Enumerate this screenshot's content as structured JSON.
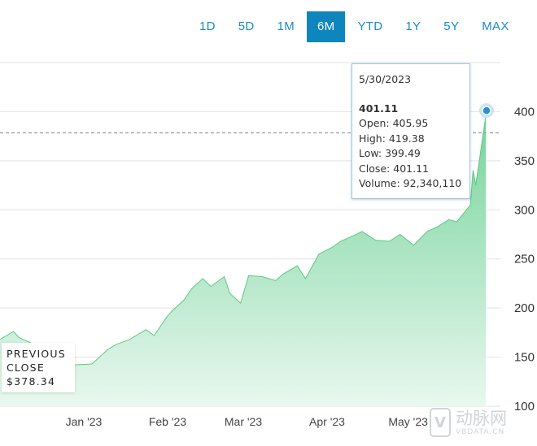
{
  "ranges": {
    "items": [
      "1D",
      "5D",
      "1M",
      "6M",
      "YTD",
      "1Y",
      "5Y",
      "MAX"
    ],
    "active": "6M"
  },
  "colors": {
    "accent": "#0e86bd",
    "area_top": "#74d39a",
    "area_bottom": "#e9f8ef",
    "gridline": "#e2e2e2"
  },
  "tooltip": {
    "date": "5/30/2023",
    "price": "401.11",
    "open": "Open: 405.95",
    "high": "High: 419.38",
    "low": "Low: 399.49",
    "close": "Close: 401.11",
    "volume": "Volume: 92,340,110"
  },
  "previous_close": {
    "label_line1": "PREVIOUS",
    "label_line2": "CLOSE",
    "value": "$378.34"
  },
  "watermark": {
    "logo_letter": "V",
    "text": "动脉网",
    "url": "VBDATA.CN"
  },
  "chart_data": {
    "type": "area",
    "x_tick_labels": [
      "Jan '23",
      "Feb '23",
      "Mar '23",
      "Apr '23",
      "May '23"
    ],
    "y_ticks": [
      100,
      150,
      200,
      250,
      300,
      350,
      400
    ],
    "ylim": [
      100,
      450
    ],
    "previous_close": 378.34,
    "grid": true,
    "series": [
      {
        "x": [
          "2022-12-01",
          "2022-12-06",
          "2022-12-08",
          "2022-12-12",
          "2022-12-16",
          "2022-12-22",
          "2022-12-28",
          "2023-01-04",
          "2023-01-10",
          "2023-01-13",
          "2023-01-18",
          "2023-01-24",
          "2023-01-27",
          "2023-02-01",
          "2023-02-03",
          "2023-02-07",
          "2023-02-10",
          "2023-02-14",
          "2023-02-17",
          "2023-02-22",
          "2023-02-24",
          "2023-02-28",
          "2023-03-03",
          "2023-03-08",
          "2023-03-13",
          "2023-03-16",
          "2023-03-21",
          "2023-03-24",
          "2023-03-29",
          "2023-04-03",
          "2023-04-06",
          "2023-04-11",
          "2023-04-14",
          "2023-04-19",
          "2023-04-24",
          "2023-04-28",
          "2023-05-03",
          "2023-05-08",
          "2023-05-12",
          "2023-05-16",
          "2023-05-19",
          "2023-05-24",
          "2023-05-25",
          "2023-05-26",
          "2023-05-30"
        ],
        "y": [
          168,
          176,
          170,
          165,
          158,
          148,
          142,
          143,
          158,
          163,
          168,
          178,
          172,
          192,
          198,
          208,
          220,
          230,
          222,
          232,
          215,
          205,
          233,
          232,
          228,
          235,
          243,
          230,
          255,
          262,
          268,
          274,
          278,
          269,
          268,
          275,
          264,
          278,
          283,
          290,
          288,
          305,
          340,
          325,
          401.11
        ]
      }
    ],
    "highlight": {
      "x": "2023-05-30",
      "y": 401.11
    }
  }
}
